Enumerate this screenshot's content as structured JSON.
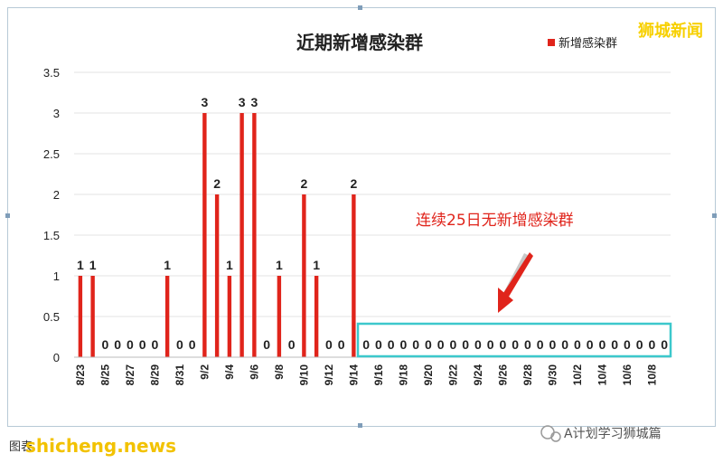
{
  "chart_data": {
    "type": "bar",
    "title": "近期新增感染群",
    "legend": [
      {
        "name": "新增感染群",
        "color": "#e0241b",
        "position": "top-right"
      }
    ],
    "ylim": [
      0,
      3.5
    ],
    "yticks": [
      "0",
      "0.5",
      "1",
      "1.5",
      "2",
      "2.5",
      "3",
      "3.5"
    ],
    "grid": true,
    "categories": [
      "8/23",
      "8/24",
      "8/25",
      "8/26",
      "8/27",
      "8/28",
      "8/29",
      "8/30",
      "8/31",
      "9/1",
      "9/2",
      "9/3",
      "9/4",
      "9/5",
      "9/6",
      "9/7",
      "9/8",
      "9/9",
      "9/10",
      "9/11",
      "9/12",
      "9/13",
      "9/14",
      "9/15",
      "9/16",
      "9/17",
      "9/18",
      "9/19",
      "9/20",
      "9/21",
      "9/22",
      "9/23",
      "9/24",
      "9/25",
      "9/26",
      "9/27",
      "9/28",
      "9/29",
      "9/30",
      "10/1",
      "10/2",
      "10/3",
      "10/4",
      "10/5",
      "10/6",
      "10/7",
      "10/8",
      "10/9"
    ],
    "xtick_labels": [
      "8/23",
      "8/25",
      "8/27",
      "8/29",
      "8/31",
      "9/2",
      "9/4",
      "9/6",
      "9/8",
      "9/10",
      "9/12",
      "9/14",
      "9/16",
      "9/18",
      "9/20",
      "9/22",
      "9/24",
      "9/26",
      "9/28",
      "9/30",
      "10/2",
      "10/4",
      "10/6",
      "10/8"
    ],
    "series": [
      {
        "name": "新增感染群",
        "color": "#e0241b",
        "values": [
          1,
          1,
          0,
          0,
          0,
          0,
          0,
          1,
          0,
          0,
          3,
          2,
          1,
          3,
          3,
          0,
          1,
          0,
          2,
          1,
          0,
          0,
          2,
          0,
          0,
          0,
          0,
          0,
          0,
          0,
          0,
          0,
          0,
          0,
          0,
          0,
          0,
          0,
          0,
          0,
          0,
          0,
          0,
          0,
          0,
          0,
          0,
          0
        ]
      }
    ],
    "annotation": {
      "text": "连续25日无新增感染群",
      "color": "#e0241b",
      "highlight_color": "#3cc8cc"
    }
  },
  "watermarks": {
    "top_right": "狮城新闻",
    "footer_site": "shicheng.news",
    "footer_right": "A计划学习狮城篇",
    "footer_left": "图表"
  }
}
